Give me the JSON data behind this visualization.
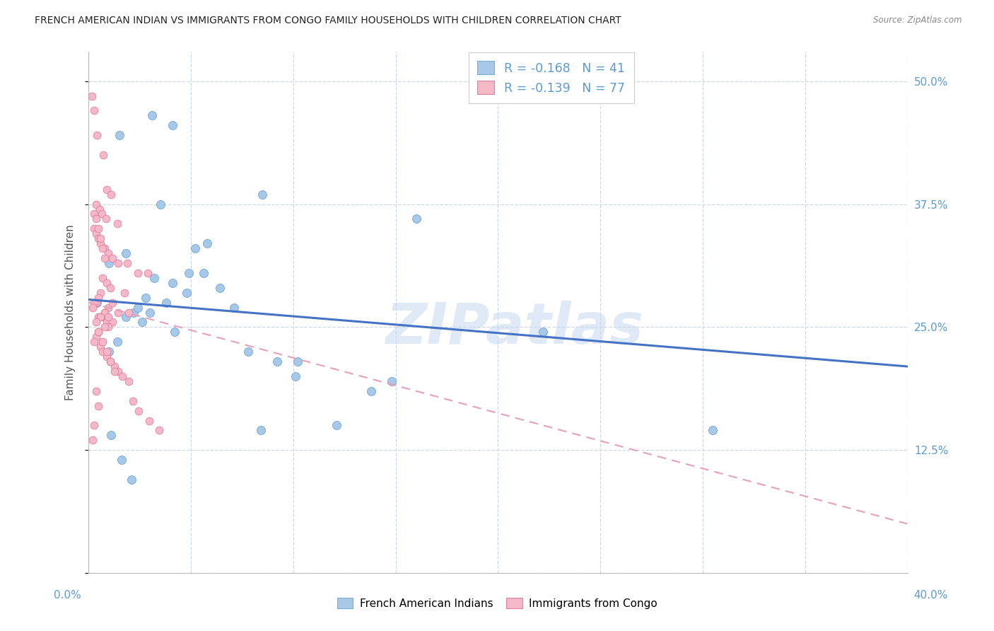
{
  "title": "FRENCH AMERICAN INDIAN VS IMMIGRANTS FROM CONGO FAMILY HOUSEHOLDS WITH CHILDREN CORRELATION CHART",
  "source": "Source: ZipAtlas.com",
  "ylabel": "Family Households with Children",
  "legend_r1": "R = -0.168",
  "legend_n1": "N = 41",
  "legend_r2": "R = -0.139",
  "legend_n2": "N = 77",
  "legend_label1": "French American Indians",
  "legend_label2": "Immigrants from Congo",
  "blue_color": "#a8c8e8",
  "blue_line_color": "#4472c4",
  "pink_color": "#f4b8c8",
  "pink_line_color": "#e8a0b8",
  "blue_scatter_x": [
    0.4,
    1.5,
    3.5,
    1.0,
    4.8,
    2.2,
    8.5,
    1.8,
    3.2,
    5.2,
    5.8,
    7.8,
    4.2,
    2.8,
    1.8,
    1.4,
    2.6,
    3.8,
    1.0,
    5.6,
    14.8,
    10.2,
    13.8,
    2.4,
    3.0,
    4.1,
    4.9,
    6.4,
    7.1,
    8.4,
    9.2,
    10.1,
    12.1,
    22.2,
    30.5,
    1.1,
    1.6,
    2.1,
    3.1,
    4.1,
    16.0
  ],
  "blue_scatter_y": [
    27.5,
    44.5,
    37.5,
    31.5,
    28.5,
    26.5,
    38.5,
    32.5,
    30.0,
    33.0,
    33.5,
    22.5,
    24.5,
    28.0,
    26.0,
    23.5,
    25.5,
    27.5,
    22.5,
    30.5,
    19.5,
    21.5,
    18.5,
    27.0,
    26.5,
    29.5,
    30.5,
    29.0,
    27.0,
    14.5,
    21.5,
    20.0,
    15.0,
    24.5,
    14.5,
    14.0,
    11.5,
    9.5,
    46.5,
    45.5,
    36.0
  ],
  "pink_scatter_x": [
    0.15,
    0.25,
    0.4,
    0.7,
    0.9,
    1.1,
    0.35,
    0.55,
    0.65,
    0.85,
    1.4,
    0.28,
    0.38,
    0.48,
    0.58,
    0.78,
    0.95,
    1.15,
    1.45,
    1.9,
    2.4,
    2.9,
    1.75,
    0.68,
    0.88,
    1.05,
    0.58,
    0.48,
    0.38,
    0.28,
    0.18,
    0.95,
    1.45,
    1.95,
    0.78,
    0.48,
    0.68,
    0.58,
    0.88,
    1.15,
    0.95,
    0.78,
    0.48,
    0.38,
    0.28,
    0.58,
    0.68,
    0.88,
    1.05,
    1.25,
    1.45,
    1.65,
    1.95,
    2.15,
    2.45,
    2.95,
    3.45,
    0.38,
    0.48,
    0.28,
    0.18,
    0.78,
    0.95,
    1.15,
    0.58,
    0.38,
    0.48,
    0.68,
    0.88,
    1.05,
    1.25,
    0.28,
    0.38,
    0.48,
    0.58,
    0.68,
    0.78
  ],
  "pink_scatter_y": [
    48.5,
    47.0,
    44.5,
    42.5,
    39.0,
    38.5,
    37.5,
    37.0,
    36.5,
    36.0,
    35.5,
    35.0,
    34.5,
    34.0,
    33.5,
    33.0,
    32.5,
    32.0,
    31.5,
    31.5,
    30.5,
    30.5,
    28.5,
    30.0,
    29.5,
    29.0,
    28.5,
    28.0,
    27.5,
    27.5,
    27.0,
    27.0,
    26.5,
    26.5,
    26.5,
    26.0,
    26.0,
    26.0,
    25.5,
    25.5,
    25.0,
    25.0,
    24.5,
    24.0,
    23.5,
    23.0,
    22.5,
    22.0,
    21.5,
    21.0,
    20.5,
    20.0,
    19.5,
    17.5,
    16.5,
    15.5,
    14.5,
    18.5,
    17.0,
    15.0,
    13.5,
    26.5,
    26.0,
    27.5,
    26.0,
    25.5,
    24.5,
    23.5,
    22.5,
    21.5,
    20.5,
    36.5,
    36.0,
    35.0,
    34.0,
    33.0,
    32.0
  ],
  "xlim": [
    0,
    40
  ],
  "ylim": [
    0,
    53
  ],
  "blue_line_x": [
    0.0,
    40.0
  ],
  "blue_line_y": [
    27.8,
    21.0
  ],
  "pink_line_x": [
    0.0,
    40.0
  ],
  "pink_line_y": [
    27.5,
    5.0
  ],
  "watermark": "ZIPatlas",
  "background_color": "#ffffff",
  "grid_color": "#d0d8e8"
}
